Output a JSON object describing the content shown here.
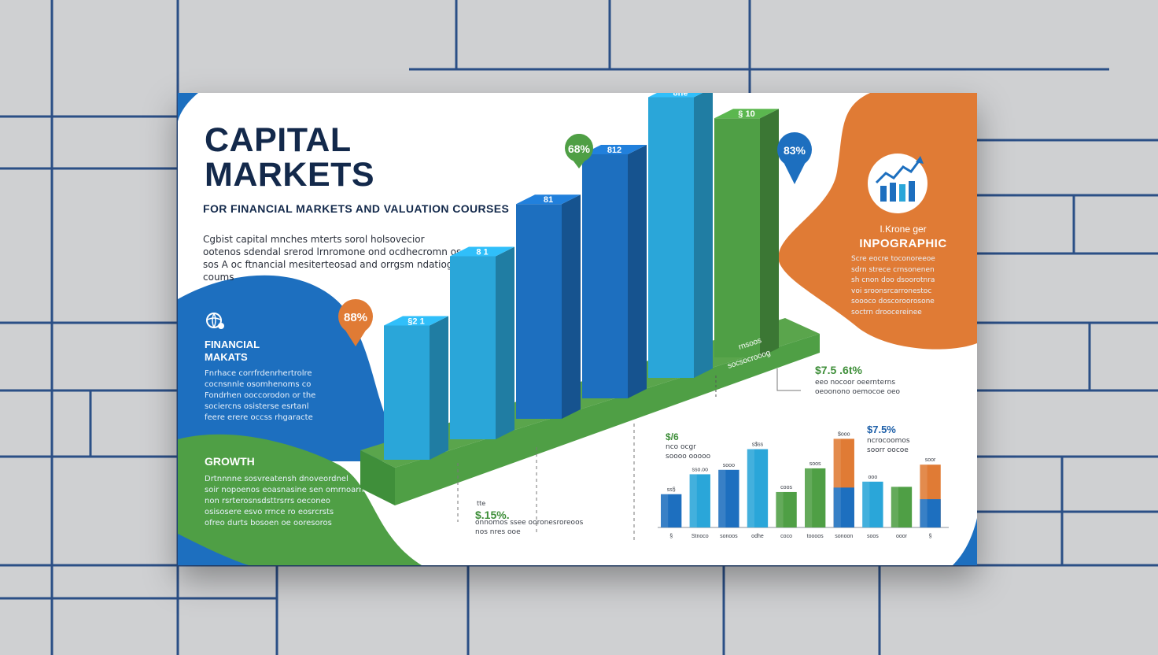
{
  "poster": {
    "title_line1": "CAPITAL",
    "title_line2": "MARKETS",
    "subtitle": "FOR FINANCIAL MARKETS AND VALUATION COURSES",
    "intro": "Cgbist capital mnches mterts sorol holsovecior ootenos sdendal srerod lrnromone ond ocdhecromn os sos A oc ftnancial mesiterteosad and orrgsm ndatiog coums"
  },
  "blue_panel": {
    "heading": "FINANCIAL\nMAKATS",
    "paragraph": "Fnrhace corrfrdenrhertrolre\ncocnsnnle osomhenoms co\nFondrhen ooccorodon or the\nsociercns osisterse esrtanl\nfeere erere occss rhgaracte"
  },
  "green_panel": {
    "heading": "GROWTH",
    "paragraph": "Drtnnnne sosvreatensh dnoveordnel\nsoir nopoenos eoasnasine sen omrnoarn\nnon rsrterosnsdsttrsrrs oeconeo\nosisosere esvo rrnce ro eosrcrsts\nofreo durts bosoen oe ooresoros"
  },
  "orange_panel": {
    "small_title": "I.Krone ger",
    "heading": "INPOGRAPHIC",
    "paragraph": "Scre eocre toconoreeoe\nsdrn strece crnsonenen\nsh cnon doo dsoorotnra\nvoi sroonsrcarronestoc\nsoooco doscoroorosone\nsoctrn droocereinee"
  },
  "pins": [
    {
      "label": "68%",
      "color": "#4f9f45"
    },
    {
      "label": "83%",
      "color": "#1d6fbf"
    },
    {
      "label": "88%",
      "color": "#e07b35"
    }
  ],
  "annotations": {
    "diag_label1": "rnsoos",
    "diag_label2": "socsocrooog",
    "stat_right": "$7.5 .6t%",
    "stat_right_text": "eeo nocoor oeernterns\noeoonono oemocoe oeo",
    "stat_bottom": "$.15%.",
    "stat_bottom_small": "tte",
    "stat_bottom_text": "onnomos ssee ooronesroreoos\nnos nres ooe",
    "stat_chart_left": "$/6",
    "stat_chart_left_text": "nco ocgr\nsoooo ooooo",
    "stat_chart_right": "$7.5%",
    "stat_chart_right_text": "ncrocoomos\nsoorr oocoe"
  },
  "chart_data": {
    "type": "bar",
    "title": "",
    "xlabel": "",
    "ylabel": "",
    "ylim": [
      0,
      130
    ],
    "categories": [
      "§",
      "Stnoco",
      "sonoos",
      "odhe",
      "coco",
      "toooos",
      "sonoon",
      "soos",
      "ooor",
      "§"
    ],
    "value_labels": [
      "ss§",
      "sso.oo",
      "sooo",
      "s$ss",
      "coos",
      "soos",
      "$ooo",
      "ooo",
      "",
      "soor"
    ],
    "series": [
      {
        "values": [
          45,
          72,
          78,
          106,
          48,
          80,
          120,
          62,
          55,
          85
        ]
      }
    ],
    "colors": [
      "#1d6fbf",
      "#2aa6d9",
      "#1d6fbf",
      "#2aa6d9",
      "#4f9f45",
      "#4f9f45",
      "#e07b35",
      "#2aa6d9",
      "#4f9f45",
      "#e07b35"
    ],
    "bar3d": {
      "type": "bar",
      "values": [
        55,
        75,
        88,
        100,
        115,
        98
      ],
      "value_labels": [
        "§2 1",
        "8 1",
        "81",
        "812",
        "8ne",
        "§ 10"
      ],
      "colors": [
        "#2aa6d9",
        "#2aa6d9",
        "#1d6fbf",
        "#1d6fbf",
        "#2aa6d9",
        "#4f9f45"
      ]
    }
  }
}
